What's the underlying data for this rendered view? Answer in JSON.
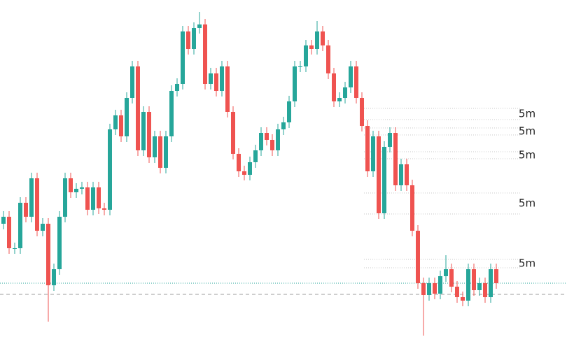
{
  "chart_data": {
    "type": "candlestick",
    "up_color": "#26a69a",
    "down_color": "#ef5350",
    "ylim": [
      -2,
      500
    ],
    "open": [
      180,
      190,
      145,
      145,
      210,
      190,
      245,
      170,
      180,
      92,
      115,
      190,
      245,
      225,
      230,
      232,
      200,
      232,
      202,
      200,
      315,
      335,
      305,
      360,
      405,
      285,
      340,
      275,
      305,
      260,
      305,
      370,
      380,
      455,
      430,
      460,
      465,
      380,
      395,
      370,
      405,
      340,
      280,
      255,
      250,
      268,
      285,
      310,
      300,
      285,
      315,
      325,
      355,
      405,
      405,
      435,
      430,
      455,
      435,
      395,
      355,
      360,
      375,
      405,
      360,
      320,
      255,
      305,
      195,
      290,
      310,
      235,
      265,
      235,
      170,
      95,
      78,
      95,
      80,
      105,
      115,
      90,
      75,
      70,
      115,
      85,
      95,
      75,
      115
    ],
    "high": [
      198,
      198,
      153,
      218,
      218,
      253,
      253,
      188,
      188,
      123,
      198,
      253,
      253,
      238,
      240,
      240,
      240,
      240,
      210,
      323,
      343,
      343,
      368,
      413,
      413,
      348,
      348,
      313,
      313,
      313,
      378,
      388,
      463,
      463,
      468,
      483,
      473,
      403,
      403,
      413,
      413,
      348,
      288,
      263,
      276,
      293,
      318,
      318,
      308,
      323,
      333,
      363,
      413,
      413,
      443,
      443,
      470,
      463,
      443,
      403,
      368,
      383,
      413,
      413,
      368,
      328,
      313,
      313,
      298,
      318,
      318,
      273,
      273,
      243,
      178,
      103,
      103,
      103,
      113,
      135,
      123,
      98,
      83,
      123,
      123,
      103,
      103,
      123,
      123
    ],
    "low": [
      172,
      137,
      137,
      137,
      182,
      182,
      162,
      162,
      40,
      84,
      107,
      182,
      217,
      217,
      222,
      192,
      192,
      194,
      192,
      192,
      307,
      297,
      297,
      352,
      277,
      277,
      267,
      267,
      252,
      252,
      297,
      362,
      372,
      422,
      422,
      452,
      372,
      372,
      362,
      362,
      332,
      272,
      247,
      242,
      242,
      260,
      277,
      292,
      277,
      277,
      307,
      317,
      347,
      397,
      397,
      422,
      422,
      427,
      387,
      347,
      347,
      352,
      367,
      352,
      312,
      247,
      247,
      187,
      187,
      282,
      227,
      227,
      227,
      162,
      87,
      20,
      70,
      72,
      72,
      97,
      82,
      67,
      62,
      62,
      77,
      77,
      67,
      67,
      87
    ],
    "close": [
      190,
      145,
      145,
      210,
      190,
      245,
      170,
      180,
      92,
      115,
      190,
      245,
      225,
      230,
      232,
      200,
      232,
      202,
      200,
      315,
      335,
      305,
      360,
      405,
      285,
      340,
      275,
      305,
      260,
      305,
      370,
      380,
      455,
      430,
      460,
      465,
      380,
      395,
      370,
      405,
      340,
      280,
      255,
      250,
      268,
      285,
      310,
      300,
      285,
      315,
      325,
      355,
      405,
      405,
      435,
      430,
      455,
      435,
      395,
      355,
      360,
      375,
      405,
      360,
      320,
      255,
      305,
      195,
      290,
      310,
      235,
      265,
      235,
      170,
      95,
      78,
      95,
      80,
      105,
      115,
      90,
      75,
      70,
      115,
      85,
      95,
      75,
      115,
      95
    ],
    "zones": [
      {
        "top": 345,
        "bottom": 329,
        "label": "5m"
      },
      {
        "top": 317,
        "bottom": 307,
        "label": "5m"
      },
      {
        "top": 283,
        "bottom": 273,
        "label": "5m"
      },
      {
        "top": 224,
        "bottom": 194,
        "label": "5m"
      },
      {
        "top": 129,
        "bottom": 117,
        "label": "5m"
      }
    ],
    "zone_color": "#c8c8c8",
    "price_lines": [
      {
        "value": 95,
        "color": "#26a69a",
        "style": "dotted"
      },
      {
        "value": 79,
        "color": "#9e9e9e",
        "style": "dashed"
      }
    ]
  }
}
